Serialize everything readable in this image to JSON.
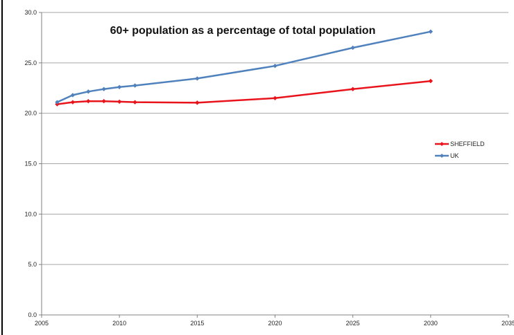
{
  "chart_data": {
    "type": "line",
    "title": "60+ population as a percentage of total population",
    "xlabel": "",
    "ylabel": "",
    "xlim": [
      2005,
      2035
    ],
    "ylim": [
      0,
      30
    ],
    "x_ticks": [
      "2005",
      "2010",
      "2015",
      "2020",
      "2025",
      "2030",
      "2035"
    ],
    "y_ticks": [
      "0.0",
      "5.0",
      "10.0",
      "15.0",
      "20.0",
      "25.0",
      "30.0"
    ],
    "grid": "horizontal",
    "legend_position": "right",
    "series": [
      {
        "name": "SHEFFIELD",
        "color": "#e8131b",
        "marker": "diamond",
        "x": [
          2006,
          2007,
          2008,
          2009,
          2010,
          2011,
          2015,
          2020,
          2025,
          2030
        ],
        "y": [
          20.9,
          21.1,
          21.2,
          21.2,
          21.15,
          21.1,
          21.05,
          21.5,
          22.4,
          23.2
        ]
      },
      {
        "name": "UK",
        "color": "#4f81bd",
        "marker": "diamond",
        "x": [
          2006,
          2007,
          2008,
          2009,
          2010,
          2011,
          2015,
          2020,
          2025,
          2030
        ],
        "y": [
          21.1,
          21.8,
          22.15,
          22.4,
          22.6,
          22.75,
          23.45,
          24.7,
          26.5,
          28.1
        ]
      }
    ]
  }
}
